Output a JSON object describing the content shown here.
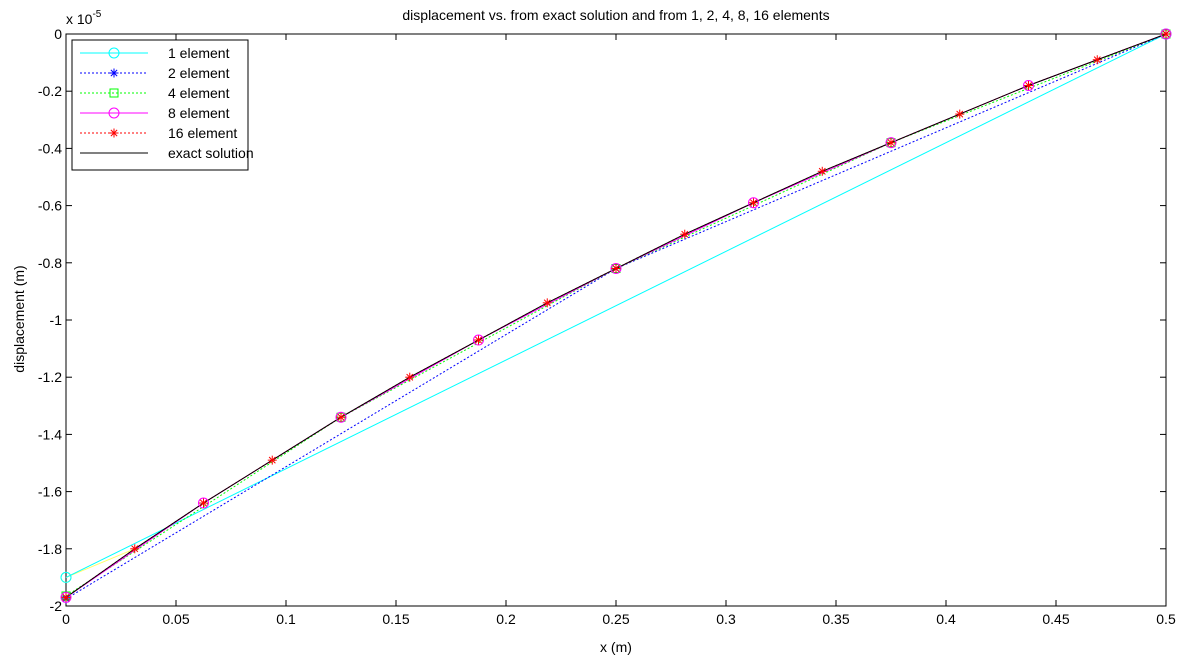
{
  "chart_data": {
    "type": "line",
    "title": "displacement vs. from exact solution and from 1, 2, 4, 8, 16 elements",
    "xlabel": "x (m)",
    "ylabel": "displacement (m)",
    "y_exponent_base": "x 10",
    "y_exponent_power": "-5",
    "xlim": [
      0,
      0.5
    ],
    "ylim": [
      -2,
      0
    ],
    "xticks": [
      0,
      0.05,
      0.1,
      0.15,
      0.2,
      0.25,
      0.3,
      0.35,
      0.4,
      0.45,
      0.5
    ],
    "xtick_labels": [
      "0",
      "0.05",
      "0.1",
      "0.15",
      "0.2",
      "0.25",
      "0.3",
      "0.35",
      "0.4",
      "0.45",
      "0.5"
    ],
    "yticks": [
      0,
      -0.2,
      -0.4,
      -0.6,
      -0.8,
      -1,
      -1.2,
      -1.4,
      -1.6,
      -1.8,
      -2
    ],
    "ytick_labels": [
      "0",
      "-0.2",
      "-0.4",
      "-0.6",
      "-0.8",
      "-1",
      "-1.2",
      "-1.4",
      "-1.6",
      "-1.8",
      "-2"
    ],
    "grid": false,
    "legend_position": "top-left",
    "series": [
      {
        "name": "1 element",
        "color": "#00ffff",
        "dash": "solid",
        "marker": "circle",
        "x": [
          0,
          0.5
        ],
        "y": [
          -1.9,
          0
        ]
      },
      {
        "name": "2 element",
        "color": "#0000ff",
        "dash": "dotted",
        "marker": "asterisk",
        "x": [
          0,
          0.25,
          0.5
        ],
        "y": [
          -1.975,
          -0.82,
          0
        ]
      },
      {
        "name": "4 element",
        "color": "#00ff00",
        "dash": "dotted",
        "marker": "square",
        "x": [
          0,
          0.125,
          0.25,
          0.375,
          0.5
        ],
        "y": [
          -1.965,
          -1.34,
          -0.82,
          -0.38,
          0
        ]
      },
      {
        "name": "8 element",
        "color": "#ff00ff",
        "dash": "solid",
        "marker": "circle",
        "x": [
          0,
          0.0625,
          0.125,
          0.1875,
          0.25,
          0.3125,
          0.375,
          0.4375,
          0.5
        ],
        "y": [
          -1.97,
          -1.64,
          -1.34,
          -1.07,
          -0.82,
          -0.59,
          -0.38,
          -0.18,
          0
        ]
      },
      {
        "name": "16 element",
        "color": "#ff0000",
        "dash": "dotted",
        "marker": "asterisk",
        "x": [
          0,
          0.03125,
          0.0625,
          0.09375,
          0.125,
          0.15625,
          0.1875,
          0.21875,
          0.25,
          0.28125,
          0.3125,
          0.34375,
          0.375,
          0.40625,
          0.4375,
          0.46875,
          0.5
        ],
        "y": [
          -1.97,
          -1.8,
          -1.64,
          -1.49,
          -1.34,
          -1.2,
          -1.07,
          -0.94,
          -0.82,
          -0.7,
          -0.59,
          -0.48,
          -0.38,
          -0.28,
          -0.18,
          -0.09,
          0
        ]
      },
      {
        "name": "exact solution",
        "color": "#000000",
        "dash": "solid",
        "marker": "none",
        "x": [
          0,
          0.03125,
          0.0625,
          0.09375,
          0.125,
          0.15625,
          0.1875,
          0.21875,
          0.25,
          0.28125,
          0.3125,
          0.34375,
          0.375,
          0.40625,
          0.4375,
          0.46875,
          0.5
        ],
        "y": [
          -1.97,
          -1.8,
          -1.64,
          -1.49,
          -1.34,
          -1.2,
          -1.07,
          -0.94,
          -0.82,
          -0.7,
          -0.59,
          -0.48,
          -0.38,
          -0.28,
          -0.18,
          -0.09,
          0
        ]
      }
    ],
    "extra_lines": [
      {
        "color": "#ffff66",
        "marker": "circle",
        "x": [
          0,
          0.03125
        ],
        "y": [
          -1.9,
          -1.8
        ]
      }
    ]
  }
}
